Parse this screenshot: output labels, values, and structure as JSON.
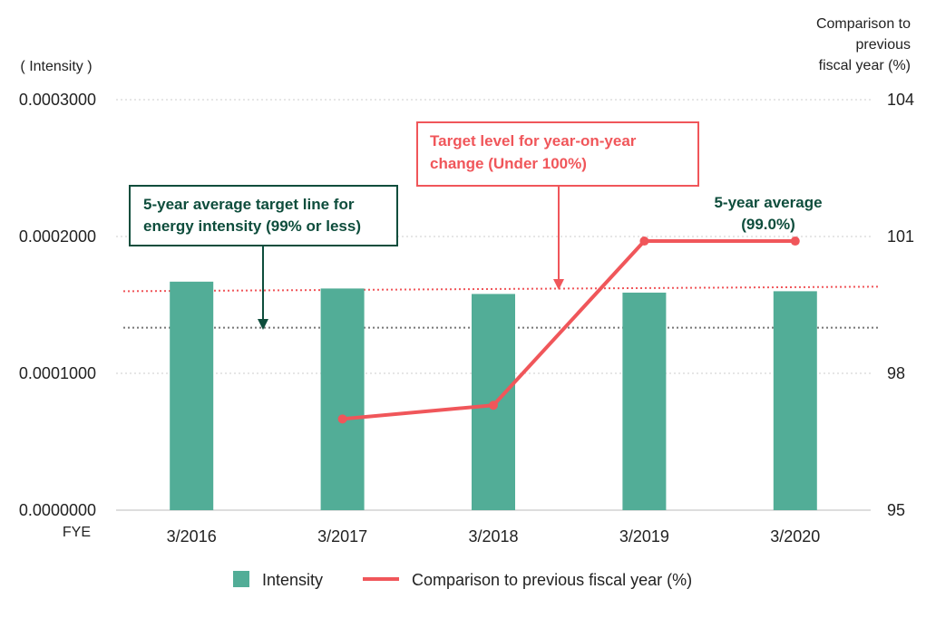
{
  "colors": {
    "bar": "#52ad97",
    "line": "#f0565a",
    "green_dark": "#0e4d3c",
    "grid": "#cccccc",
    "avg_line": "#777777",
    "text": "#222222"
  },
  "chart_data": {
    "type": "bar",
    "xlabel": "FYE",
    "categories": [
      "3/2016",
      "3/2017",
      "3/2018",
      "3/2019",
      "3/2020"
    ],
    "y_left": {
      "label": "( Intensity )",
      "ylim": [
        0,
        0.0003
      ],
      "ticks": [
        "0.0000000",
        "0.0001000",
        "0.0002000",
        "0.0003000"
      ],
      "tick_values": [
        0,
        0.0001,
        0.0002,
        0.0003
      ]
    },
    "y_right": {
      "label_lines": [
        "Comparison to",
        "previous",
        "fiscal year (%)"
      ],
      "ylim": [
        95,
        104
      ],
      "ticks": [
        "95",
        "98",
        "101",
        "104"
      ],
      "tick_values": [
        95,
        98,
        101,
        104
      ]
    },
    "series": [
      {
        "name": "Intensity",
        "type": "bar",
        "axis": "left",
        "values": [
          0.000167,
          0.000162,
          0.000158,
          0.000159,
          0.00016
        ]
      },
      {
        "name": "Comparison to previous fiscal year (%)",
        "type": "line",
        "axis": "right",
        "values": [
          null,
          97.0,
          97.3,
          100.9,
          100.9
        ]
      }
    ],
    "reference_lines": [
      {
        "name": "target_yoy",
        "axis": "right",
        "value": 99.8,
        "value_end": 99.9,
        "style": "dotted",
        "color": "#f0565a"
      },
      {
        "name": "avg_target",
        "axis": "right",
        "value": 99.0,
        "style": "dotted",
        "color": "#777777"
      }
    ],
    "annotations": {
      "avg_target": [
        "5-year average target line for",
        "energy intensity (99% or less)"
      ],
      "target_level": [
        "Target level for year-on-year",
        "change (Under 100%)"
      ],
      "five_year_avg": [
        "5-year average",
        "(99.0%)"
      ]
    },
    "legend": {
      "position": "bottom",
      "items": [
        "Intensity",
        "Comparison to previous fiscal year (%)"
      ]
    },
    "grid": true
  }
}
